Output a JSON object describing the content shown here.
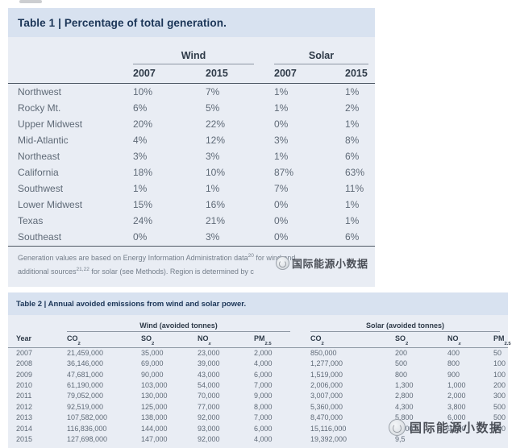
{
  "watermark": {
    "text": "国际能源小数据"
  },
  "table1": {
    "title_prefix": "Table 1 |",
    "title": "Percentage of total generation.",
    "group_wind": "Wind",
    "group_solar": "Solar",
    "year_headers": [
      "2007",
      "2015",
      "2007",
      "2015"
    ],
    "rows": [
      {
        "region": "Northwest",
        "values": [
          "10%",
          "7%",
          "1%",
          "1%"
        ]
      },
      {
        "region": "Rocky Mt.",
        "values": [
          "6%",
          "5%",
          "1%",
          "2%"
        ]
      },
      {
        "region": "Upper Midwest",
        "values": [
          "20%",
          "22%",
          "0%",
          "1%"
        ]
      },
      {
        "region": "Mid-Atlantic",
        "values": [
          "4%",
          "12%",
          "3%",
          "8%"
        ]
      },
      {
        "region": "Northeast",
        "values": [
          "3%",
          "3%",
          "1%",
          "6%"
        ]
      },
      {
        "region": "California",
        "values": [
          "18%",
          "10%",
          "87%",
          "63%"
        ]
      },
      {
        "region": "Southwest",
        "values": [
          "1%",
          "1%",
          "7%",
          "11%"
        ]
      },
      {
        "region": "Lower Midwest",
        "values": [
          "15%",
          "16%",
          "0%",
          "1%"
        ]
      },
      {
        "region": "Texas",
        "values": [
          "24%",
          "21%",
          "0%",
          "1%"
        ]
      },
      {
        "region": "Southeast",
        "values": [
          "0%",
          "3%",
          "0%",
          "6%"
        ]
      }
    ],
    "footnote1_pre": "Generation values are based on Energy Information Administration data",
    "footnote1_sup": "20",
    "footnote1_post": " for wind and",
    "footnote2_pre": "additional sources",
    "footnote2_sup": "21,22",
    "footnote2_post": " for solar (see Methods). Region is determined by c"
  },
  "table2": {
    "title_prefix": "Table 2 |",
    "title": "Annual avoided emissions from wind and solar power.",
    "group_wind": "Wind (avoided tonnes)",
    "group_solar": "Solar (avoided tonnes)",
    "col_year": "Year",
    "col_headers": [
      {
        "m": "CO",
        "s": "2"
      },
      {
        "m": "SO",
        "s": "2"
      },
      {
        "m": "NO",
        "s": "x"
      },
      {
        "m": "PM",
        "s": "2.5"
      },
      {
        "m": "CO",
        "s": "2"
      },
      {
        "m": "SO",
        "s": "2"
      },
      {
        "m": "NO",
        "s": "x"
      },
      {
        "m": "PM",
        "s": "2.5"
      }
    ],
    "rows": [
      {
        "year": "2007",
        "values": [
          "21,459,000",
          "35,000",
          "23,000",
          "2,000",
          "850,000",
          "200",
          "400",
          "50"
        ]
      },
      {
        "year": "2008",
        "values": [
          "36,146,000",
          "69,000",
          "39,000",
          "4,000",
          "1,277,000",
          "500",
          "800",
          "100"
        ]
      },
      {
        "year": "2009",
        "values": [
          "47,681,000",
          "90,000",
          "43,000",
          "6,000",
          "1,519,000",
          "800",
          "900",
          "100"
        ]
      },
      {
        "year": "2010",
        "values": [
          "61,190,000",
          "103,000",
          "54,000",
          "7,000",
          "2,006,000",
          "1,300",
          "1,000",
          "200"
        ]
      },
      {
        "year": "2011",
        "values": [
          "79,052,000",
          "130,000",
          "70,000",
          "9,000",
          "3,007,000",
          "2,800",
          "2,000",
          "300"
        ]
      },
      {
        "year": "2012",
        "values": [
          "92,519,000",
          "125,000",
          "77,000",
          "8,000",
          "5,360,000",
          "4,300",
          "3,800",
          "500"
        ]
      },
      {
        "year": "2013",
        "values": [
          "107,582,000",
          "138,000",
          "92,000",
          "7,000",
          "8,470,000",
          "5,800",
          "6,000",
          "500"
        ]
      },
      {
        "year": "2014",
        "values": [
          "116,836,000",
          "144,000",
          "93,000",
          "6,000",
          "15,116,000",
          "8,000",
          "9,100",
          "600"
        ]
      },
      {
        "year": "2015",
        "values": [
          "127,698,000",
          "147,000",
          "92,000",
          "4,000",
          "19,392,000",
          "9,5",
          "",
          ""
        ]
      }
    ]
  },
  "colors": {
    "band_bg": "#d8e2f0",
    "body_bg": "#e9edf4",
    "title_text": "#1b3557",
    "body_text": "#5f6a77",
    "rule_dark": "#4e5864"
  }
}
